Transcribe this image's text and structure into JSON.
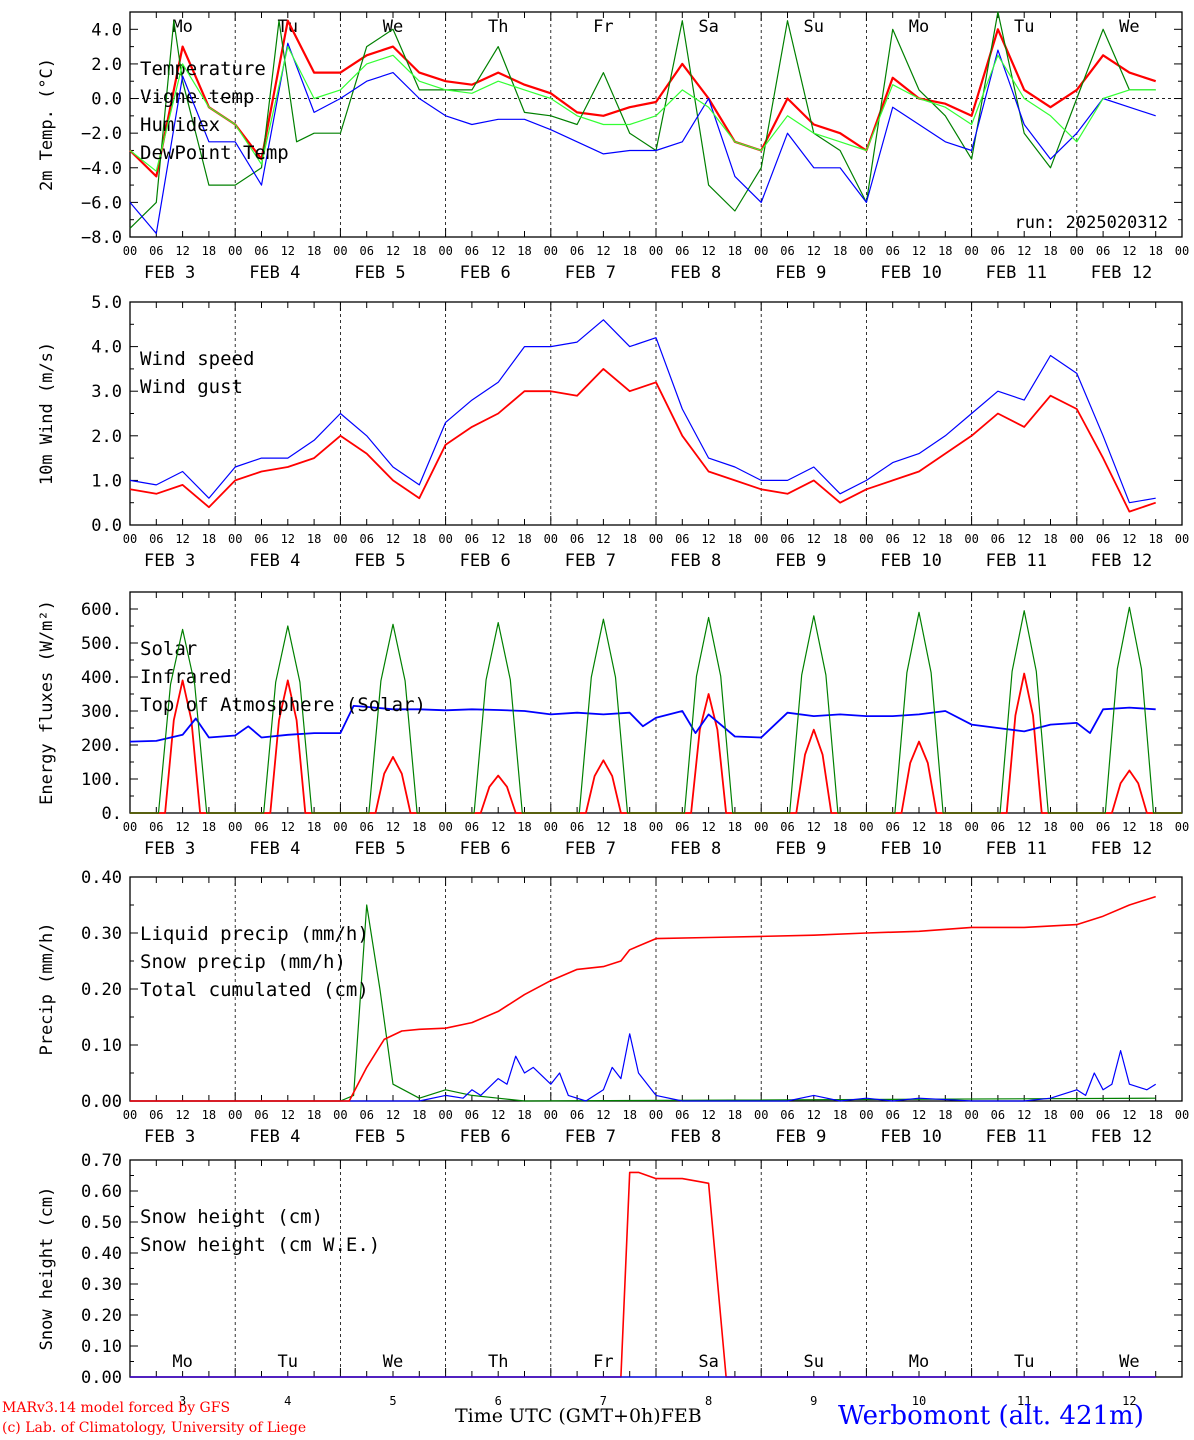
{
  "run_label": "run: 2025020312",
  "footer": {
    "model": "MARv3.14 model forced by GFS",
    "copyright": "(c) Lab. of Climatology, University of Liege",
    "time_axis": "Time UTC (GMT+0h)",
    "month": "FEB",
    "station": "Werbomont (alt. 421m)"
  },
  "colors": {
    "red": "#ff0000",
    "green": "#008000",
    "blue": "#0000ff",
    "lightgreen": "#33ff33",
    "weekend": "#ff0000"
  },
  "x_axis": {
    "hours": [
      "00",
      "06",
      "12",
      "18"
    ],
    "end_hour": "00",
    "dates": [
      "FEB  3",
      "FEB  4",
      "FEB  5",
      "FEB  6",
      "FEB  7",
      "FEB  8",
      "FEB  9",
      "FEB 10",
      "FEB 11",
      "FEB 12"
    ],
    "weekdays": [
      "Mo",
      "Tu",
      "We",
      "Th",
      "Fr",
      "Sa",
      "Su",
      "Mo",
      "Tu",
      "We"
    ],
    "weekend_index": [
      5,
      6
    ],
    "day_numbers": [
      "3",
      "4",
      "5",
      "6",
      "7",
      "8",
      "9",
      "10",
      "11",
      "12"
    ]
  },
  "chart_data": [
    {
      "type": "line",
      "ylabel": "2m Temp. (°C)",
      "ylim": [
        -8,
        5
      ],
      "yticks": [
        4,
        2,
        0,
        -2,
        -4,
        -6,
        -8
      ],
      "ytick_labels": [
        "4.0",
        "2.0",
        "0.0",
        "−2.0",
        "−4.0",
        "−6.0",
        "−8.0"
      ],
      "zero_line": true,
      "x_unit": "hours since FEB 3 00 UTC",
      "series": [
        {
          "name": "Temperature",
          "color": "#ff0000",
          "width": 2.2,
          "x": [
            0,
            6,
            12,
            18,
            24,
            30,
            36,
            42,
            48,
            54,
            60,
            66,
            72,
            78,
            84,
            90,
            96,
            102,
            108,
            114,
            120,
            126,
            132,
            138,
            144,
            150,
            156,
            162,
            168,
            174,
            180,
            186,
            192,
            198,
            204,
            210,
            216,
            222,
            228,
            234
          ],
          "y": [
            -3,
            -4.5,
            3,
            -0.5,
            -1.5,
            -3.5,
            4.5,
            1.5,
            1.5,
            2.5,
            3,
            1.5,
            1,
            0.8,
            1.5,
            0.8,
            0.3,
            -0.8,
            -1,
            -0.5,
            -0.2,
            2,
            0,
            -2.5,
            -3,
            0,
            -1.5,
            -2,
            -3,
            1.2,
            0,
            -0.3,
            -1,
            4,
            0.5,
            -0.5,
            0.5,
            2.5,
            1.5,
            1
          ]
        },
        {
          "name": "Vigne temp",
          "color": "#008000",
          "width": 1.2,
          "x": [
            0,
            6,
            10,
            12,
            18,
            24,
            30,
            34,
            38,
            42,
            48,
            54,
            60,
            66,
            72,
            78,
            84,
            90,
            96,
            102,
            108,
            114,
            120,
            126,
            132,
            138,
            144,
            150,
            156,
            162,
            168,
            174,
            180,
            186,
            192,
            198,
            204,
            210,
            216,
            222,
            228,
            234
          ],
          "y": [
            -7.5,
            -6,
            4.5,
            1,
            -5,
            -5,
            -4,
            4.5,
            -2.5,
            -2,
            -2,
            3,
            4,
            0.5,
            0.5,
            0.5,
            3,
            -0.8,
            -1,
            -1.5,
            1.5,
            -2,
            -3,
            4.5,
            -5,
            -6.5,
            -4,
            4.5,
            -2,
            -3,
            -6,
            4,
            0.5,
            -1,
            -3.5,
            5,
            -2,
            -4,
            0,
            4,
            0.5,
            0.5
          ]
        },
        {
          "name": "Humidex",
          "color": "#0000ff",
          "width": 1.2,
          "x": [
            0,
            6,
            12,
            18,
            24,
            30,
            36,
            42,
            48,
            54,
            60,
            66,
            72,
            78,
            84,
            90,
            96,
            102,
            108,
            114,
            120,
            126,
            132,
            138,
            144,
            150,
            156,
            162,
            168,
            174,
            180,
            186,
            192,
            198,
            204,
            210,
            216,
            222,
            228,
            234
          ],
          "y": [
            -6,
            -7.8,
            1.3,
            -2.5,
            -2.5,
            -5,
            3.2,
            -0.8,
            0,
            1,
            1.5,
            0,
            -1,
            -1.5,
            -1.2,
            -1.2,
            -1.8,
            -2.5,
            -3.2,
            -3,
            -3,
            -2.5,
            0,
            -4.5,
            -6,
            -2,
            -4,
            -4,
            -6,
            -0.5,
            -1.5,
            -2.5,
            -3,
            2.8,
            -1.5,
            -3.5,
            -2,
            0,
            -0.5,
            -1
          ]
        },
        {
          "name": "DewPoint Temp",
          "color": "#33ff33",
          "width": 1.2,
          "x": [
            0,
            6,
            12,
            18,
            24,
            30,
            36,
            42,
            48,
            54,
            60,
            66,
            72,
            78,
            84,
            90,
            96,
            102,
            108,
            114,
            120,
            126,
            132,
            138,
            144,
            150,
            156,
            162,
            168,
            174,
            180,
            186,
            192,
            198,
            204,
            210,
            216,
            222,
            228,
            234
          ],
          "y": [
            -3,
            -4.2,
            2,
            -0.5,
            -1.5,
            -3.8,
            3,
            0,
            0.5,
            2,
            2.5,
            1,
            0.5,
            0.3,
            1,
            0.5,
            0,
            -1,
            -1.5,
            -1.5,
            -1,
            0.5,
            -0.5,
            -2.5,
            -3,
            -1,
            -2,
            -2.5,
            -3,
            0.8,
            0,
            -0.5,
            -1.5,
            2.5,
            0,
            -1,
            -2.5,
            0,
            0.5,
            0.5
          ]
        }
      ]
    },
    {
      "type": "line",
      "ylabel": "10m Wind (m/s)",
      "ylim": [
        0,
        5
      ],
      "yticks": [
        5,
        4,
        3,
        2,
        1,
        0
      ],
      "ytick_labels": [
        "5.0",
        "4.0",
        "3.0",
        "2.0",
        "1.0",
        "0.0"
      ],
      "x_unit": "hours since FEB 3 00 UTC",
      "series": [
        {
          "name": "Wind speed",
          "color": "#ff0000",
          "width": 1.8,
          "x": [
            0,
            6,
            12,
            18,
            24,
            30,
            36,
            42,
            48,
            54,
            60,
            66,
            72,
            78,
            84,
            90,
            96,
            102,
            108,
            114,
            120,
            126,
            132,
            138,
            144,
            150,
            156,
            162,
            168,
            174,
            180,
            186,
            192,
            198,
            204,
            210,
            216,
            222,
            228,
            234
          ],
          "y": [
            0.8,
            0.7,
            0.9,
            0.4,
            1.0,
            1.2,
            1.3,
            1.5,
            2.0,
            1.6,
            1.0,
            0.6,
            1.8,
            2.2,
            2.5,
            3.0,
            3.0,
            2.9,
            3.5,
            3.0,
            3.2,
            2.0,
            1.2,
            1.0,
            0.8,
            0.7,
            1.0,
            0.5,
            0.8,
            1.0,
            1.2,
            1.6,
            2.0,
            2.5,
            2.2,
            2.9,
            2.6,
            1.5,
            0.3,
            0.5
          ]
        },
        {
          "name": "Wind gust",
          "color": "#0000ff",
          "width": 1.2,
          "x": [
            0,
            6,
            12,
            18,
            24,
            30,
            36,
            42,
            48,
            54,
            60,
            66,
            72,
            78,
            84,
            90,
            96,
            102,
            108,
            114,
            120,
            126,
            132,
            138,
            144,
            150,
            156,
            162,
            168,
            174,
            180,
            186,
            192,
            198,
            204,
            210,
            216,
            222,
            228,
            234
          ],
          "y": [
            1.0,
            0.9,
            1.2,
            0.6,
            1.3,
            1.5,
            1.5,
            1.9,
            2.5,
            2.0,
            1.3,
            0.9,
            2.3,
            2.8,
            3.2,
            4.0,
            4.0,
            4.1,
            4.6,
            4.0,
            4.2,
            2.6,
            1.5,
            1.3,
            1.0,
            1.0,
            1.3,
            0.7,
            1.0,
            1.4,
            1.6,
            2.0,
            2.5,
            3.0,
            2.8,
            3.8,
            3.4,
            2.0,
            0.5,
            0.6
          ]
        }
      ]
    },
    {
      "type": "line",
      "ylabel": "Energy fluxes (W/m²)",
      "ylim": [
        0,
        650
      ],
      "yticks": [
        600,
        500,
        400,
        300,
        200,
        100,
        0
      ],
      "ytick_labels": [
        "600.",
        "500.",
        "400.",
        "300.",
        "200.",
        "100.",
        "0."
      ],
      "x_unit": "hours since FEB 3 00 UTC",
      "daily_peaks": {
        "top_of_atmosphere_solar": [
          540,
          550,
          555,
          560,
          570,
          575,
          580,
          590,
          595,
          605
        ],
        "solar": [
          390,
          390,
          165,
          110,
          155,
          350,
          245,
          210,
          410,
          125
        ]
      },
      "series": [
        {
          "name": "Solar",
          "color": "#ff0000",
          "width": 1.8
        },
        {
          "name": "Infrared",
          "color": "#0000ff",
          "width": 1.8,
          "x": [
            0,
            6,
            12,
            15,
            18,
            24,
            27,
            30,
            36,
            42,
            48,
            51,
            54,
            60,
            66,
            72,
            78,
            84,
            90,
            96,
            102,
            108,
            114,
            117,
            120,
            126,
            129,
            132,
            138,
            144,
            150,
            156,
            162,
            168,
            174,
            180,
            186,
            192,
            198,
            204,
            210,
            216,
            219,
            222,
            228,
            234
          ],
          "y": [
            210,
            212,
            230,
            278,
            222,
            228,
            255,
            222,
            230,
            235,
            235,
            315,
            312,
            305,
            305,
            302,
            305,
            303,
            300,
            290,
            295,
            290,
            295,
            255,
            280,
            300,
            235,
            290,
            225,
            222,
            295,
            285,
            290,
            285,
            285,
            290,
            300,
            260,
            250,
            240,
            260,
            265,
            235,
            305,
            310,
            305
          ]
        },
        {
          "name": "Top of Atmosphere (Solar)",
          "color": "#008000",
          "width": 1.2
        }
      ]
    },
    {
      "type": "line",
      "ylabel": "Precip (mm/h)",
      "ylim": [
        0,
        0.4
      ],
      "yticks": [
        0.4,
        0.3,
        0.2,
        0.1,
        0
      ],
      "ytick_labels": [
        "0.40",
        "0.30",
        "0.20",
        "0.10",
        "0.00"
      ],
      "x_unit": "hours since FEB 3 00 UTC",
      "series": [
        {
          "name": "Liquid precip (mm/h)",
          "color": "#008000",
          "width": 1.2,
          "x": [
            0,
            48,
            51,
            54,
            57,
            60,
            66,
            72,
            78,
            84,
            90,
            234
          ],
          "y": [
            0,
            0,
            0.01,
            0.35,
            0.2,
            0.03,
            0.005,
            0.02,
            0.01,
            0.005,
            0,
            0.005
          ]
        },
        {
          "name": "Snow precip (mm/h)",
          "color": "#0000ff",
          "width": 1.2,
          "x": [
            0,
            66,
            72,
            76,
            78,
            80,
            84,
            86,
            88,
            90,
            92,
            96,
            98,
            100,
            104,
            108,
            110,
            112,
            114,
            116,
            120,
            126,
            150,
            156,
            162,
            168,
            174,
            180,
            192,
            204,
            210,
            216,
            218,
            220,
            222,
            224,
            226,
            228,
            232,
            234
          ],
          "y": [
            0,
            0,
            0.01,
            0.005,
            0.02,
            0.01,
            0.04,
            0.03,
            0.08,
            0.05,
            0.06,
            0.03,
            0.05,
            0.01,
            0,
            0.02,
            0.06,
            0.04,
            0.12,
            0.05,
            0.01,
            0,
            0,
            0.01,
            0,
            0.005,
            0,
            0.005,
            0,
            0,
            0.005,
            0.02,
            0.01,
            0.05,
            0.02,
            0.03,
            0.09,
            0.03,
            0.02,
            0.03
          ]
        },
        {
          "name": "Total cumulated (cm)",
          "color": "#ff0000",
          "width": 1.6,
          "x": [
            0,
            50,
            54,
            58,
            62,
            66,
            72,
            78,
            84,
            90,
            96,
            102,
            108,
            112,
            114,
            120,
            132,
            144,
            156,
            168,
            180,
            192,
            204,
            216,
            222,
            228,
            234
          ],
          "y": [
            0,
            0,
            0.06,
            0.11,
            0.125,
            0.128,
            0.13,
            0.14,
            0.16,
            0.19,
            0.215,
            0.235,
            0.24,
            0.25,
            0.27,
            0.29,
            0.292,
            0.294,
            0.296,
            0.3,
            0.303,
            0.31,
            0.31,
            0.315,
            0.33,
            0.35,
            0.365
          ]
        }
      ]
    },
    {
      "type": "line",
      "ylabel": "Snow height (cm)",
      "ylim": [
        0,
        0.7
      ],
      "yticks": [
        0.7,
        0.6,
        0.5,
        0.4,
        0.3,
        0.2,
        0.1,
        0
      ],
      "ytick_labels": [
        "0.70",
        "0.60",
        "0.50",
        "0.40",
        "0.30",
        "0.20",
        "0.10",
        "0.00"
      ],
      "x_unit": "hours since FEB 3 00 UTC",
      "series": [
        {
          "name": "Snow height (cm)",
          "color": "#ff0000",
          "width": 1.6,
          "x": [
            0,
            112,
            114,
            116,
            120,
            126,
            130,
            132,
            136,
            234
          ],
          "y": [
            0,
            0,
            0.66,
            0.66,
            0.64,
            0.64,
            0.63,
            0.625,
            0,
            0
          ]
        },
        {
          "name": "Snow height (cm W.E.)",
          "color": "#0000ff",
          "width": 1.2,
          "x": [
            0,
            234
          ],
          "y": [
            0,
            0
          ]
        }
      ]
    }
  ]
}
